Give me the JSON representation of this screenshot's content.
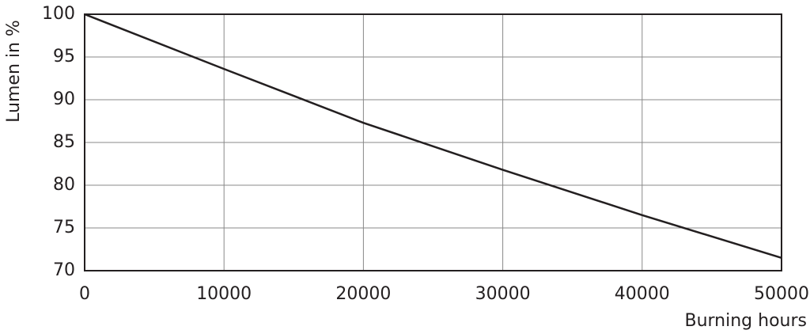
{
  "chart_data": {
    "type": "line",
    "x_label": "Burning hours",
    "y_label": "Lumen in %",
    "series": [
      {
        "name": "Lumen",
        "color": "#231f20",
        "x": [
          0,
          10000,
          20000,
          30000,
          40000,
          50000
        ],
        "values": [
          100,
          93.6,
          87.3,
          81.8,
          76.5,
          71.5
        ]
      }
    ],
    "xlim": [
      0,
      50000
    ],
    "xticks": [
      0,
      10000,
      20000,
      30000,
      40000,
      50000
    ],
    "ylim": [
      70,
      100
    ],
    "yticks": [
      70,
      75,
      80,
      85,
      90,
      95,
      100
    ],
    "grid": true
  }
}
